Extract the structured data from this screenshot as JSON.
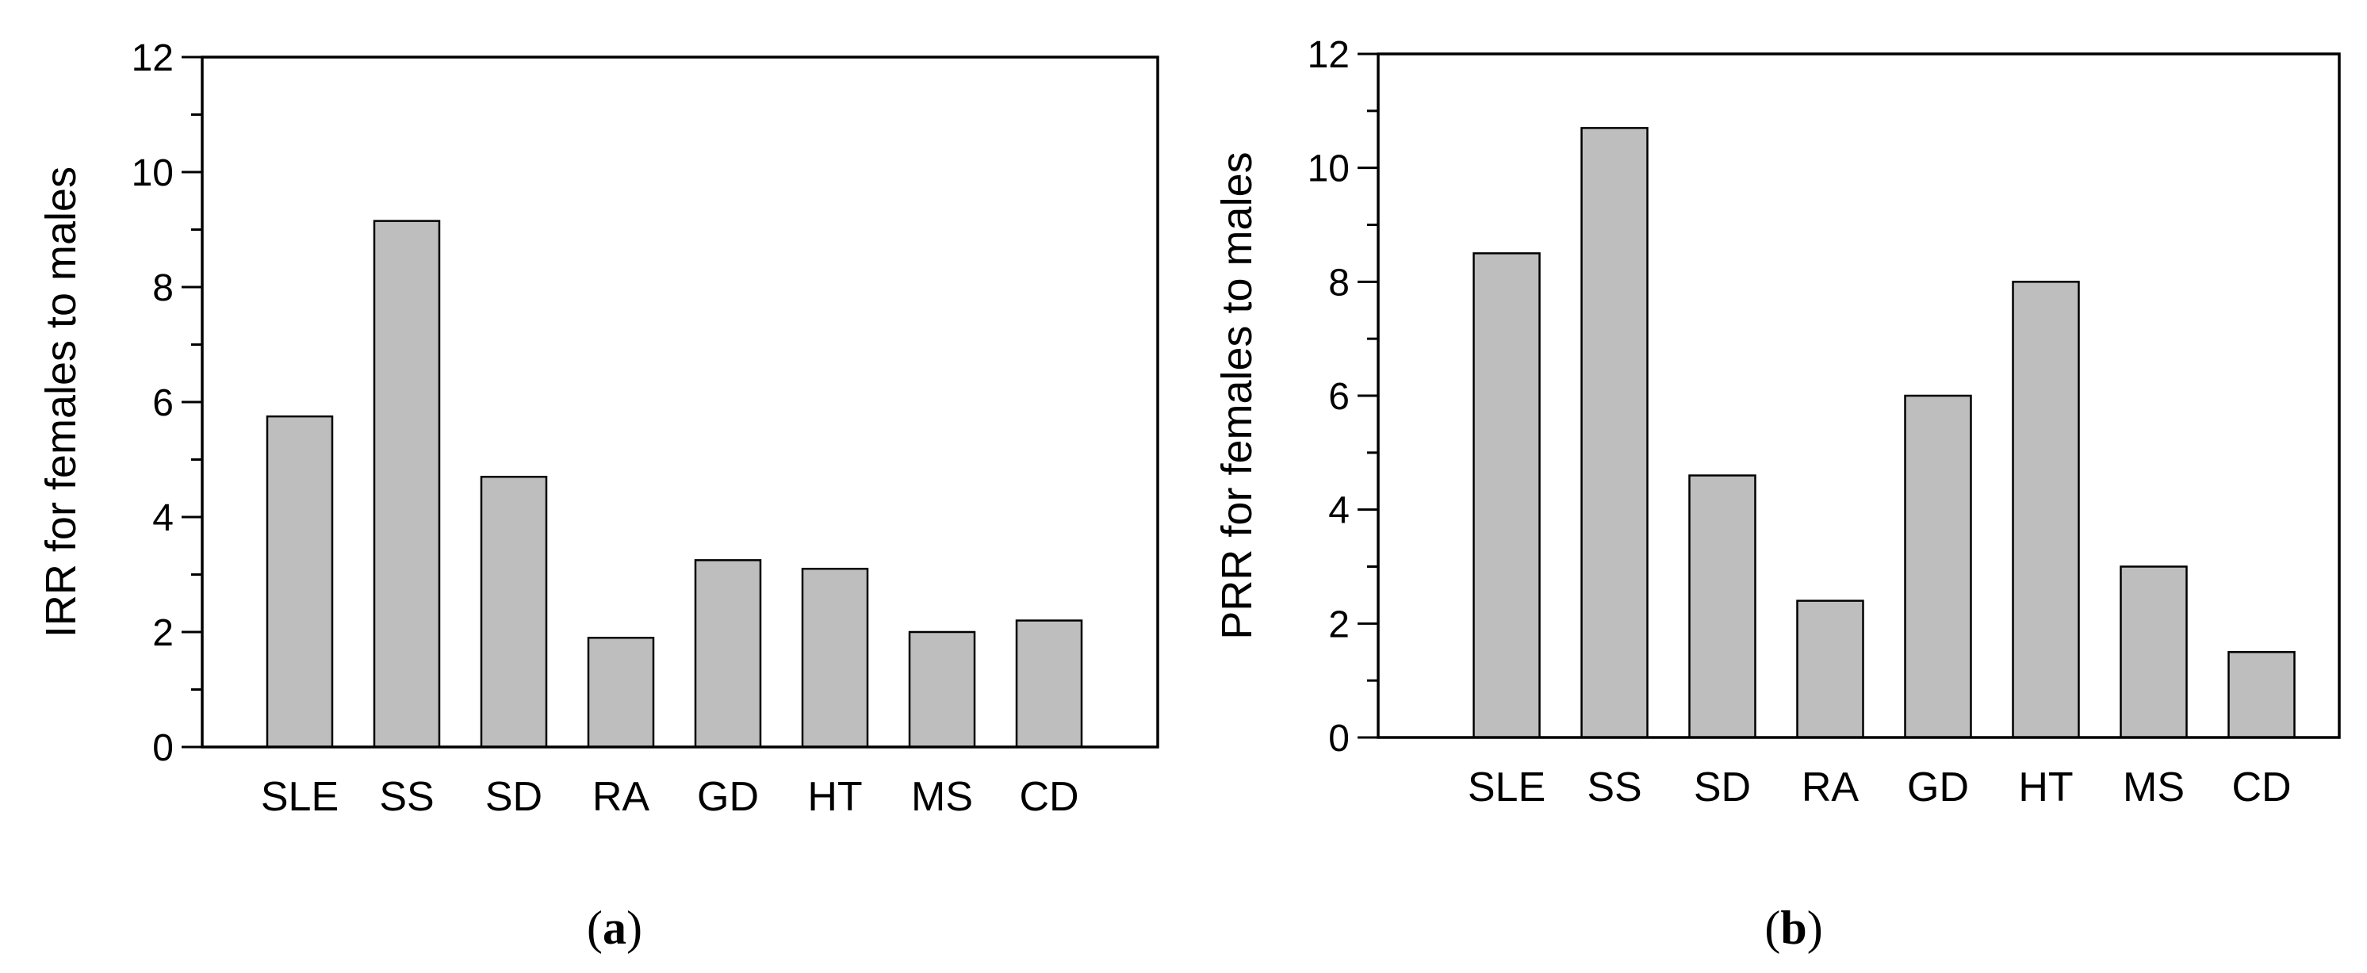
{
  "chart_data": [
    {
      "type": "bar",
      "panel_label": "a",
      "title": "",
      "xlabel": "",
      "ylabel": "IRR for females to males",
      "categories": [
        "SLE",
        "SS",
        "SD",
        "RA",
        "GD",
        "HT",
        "MS",
        "CD"
      ],
      "values": [
        5.75,
        9.15,
        4.7,
        1.9,
        3.25,
        3.1,
        2.0,
        2.2
      ],
      "ylim": [
        0,
        12
      ],
      "yticks": [
        0,
        2,
        4,
        6,
        8,
        10,
        12
      ],
      "grid": false,
      "bar_color": "#bebebe",
      "edge_color": "#000000"
    },
    {
      "type": "bar",
      "panel_label": "b",
      "title": "",
      "xlabel": "",
      "ylabel": "PRR for females to males",
      "categories": [
        "SLE",
        "SS",
        "SD",
        "RA",
        "GD",
        "HT",
        "MS",
        "CD"
      ],
      "values": [
        8.5,
        10.7,
        4.6,
        2.4,
        6.0,
        8.0,
        3.0,
        1.5
      ],
      "ylim": [
        0,
        12
      ],
      "yticks": [
        0,
        2,
        4,
        6,
        8,
        10,
        12
      ],
      "grid": false,
      "bar_color": "#bebebe",
      "edge_color": "#000000"
    }
  ],
  "panel_labels": {
    "open": "(",
    "close": ")"
  }
}
